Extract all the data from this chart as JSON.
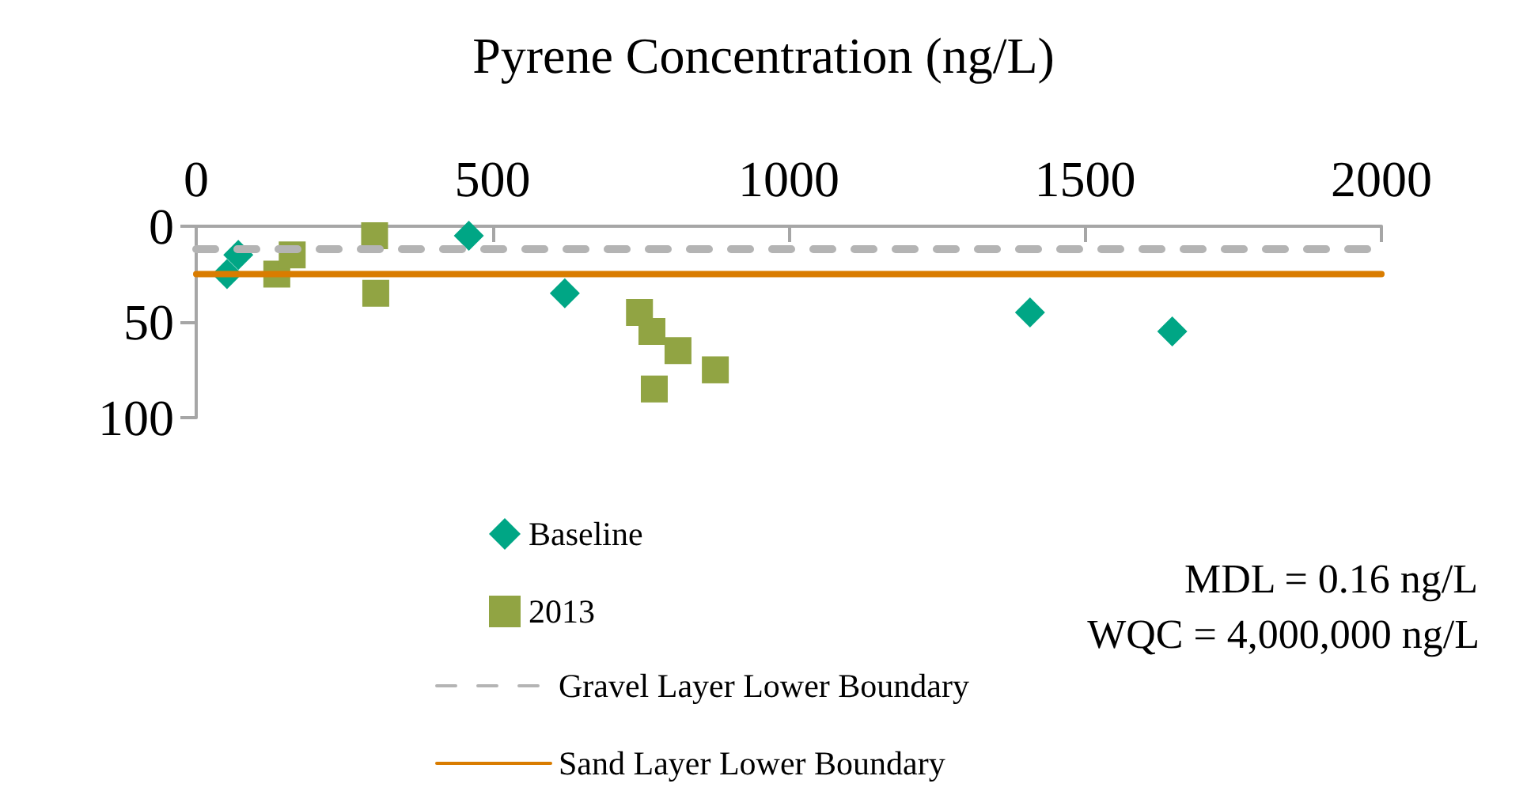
{
  "chart_data": {
    "type": "scatter",
    "title": "Pyrene Concentration (ng/L)",
    "xlim": [
      0,
      2000
    ],
    "xticks": [
      0,
      500,
      {
        "value": 1000,
        "label": "1000"
      },
      {
        "value": 1500,
        "label": "1500"
      },
      {
        "value": 2000,
        "label": "2000"
      }
    ],
    "ylim": [
      100,
      0
    ],
    "yticks": [
      0,
      50,
      100
    ],
    "grid": false,
    "legend": "bottom",
    "series": [
      {
        "name": "Baseline",
        "color": "#00a685",
        "marker": "diamond",
        "x": [
          52,
          71,
          460,
          622,
          1407,
          1647
        ],
        "values": [
          25,
          15,
          5,
          35,
          45,
          55
        ]
      },
      {
        "name": "2013",
        "color": "#91a443",
        "marker": "square",
        "x": [
          136,
          162,
          301,
          303,
          748,
          769,
          813,
          773,
          876
        ],
        "values": [
          25,
          15,
          5,
          35,
          45,
          55,
          65,
          85,
          75
        ]
      }
    ],
    "ref_lines": [
      {
        "axis": "y",
        "value": 12,
        "label": "Gravel Layer Lower Boundary",
        "color": "#b4b4b4",
        "line_style": "dashed"
      },
      {
        "axis": "y",
        "value": 25,
        "label": "Sand Layer Lower Boundary",
        "color": "#d97c00",
        "line_style": "solid"
      }
    ],
    "annotations": [
      "MDL = 0.16 ng/L",
      "WQC = 4,000,000 ng/L"
    ]
  }
}
